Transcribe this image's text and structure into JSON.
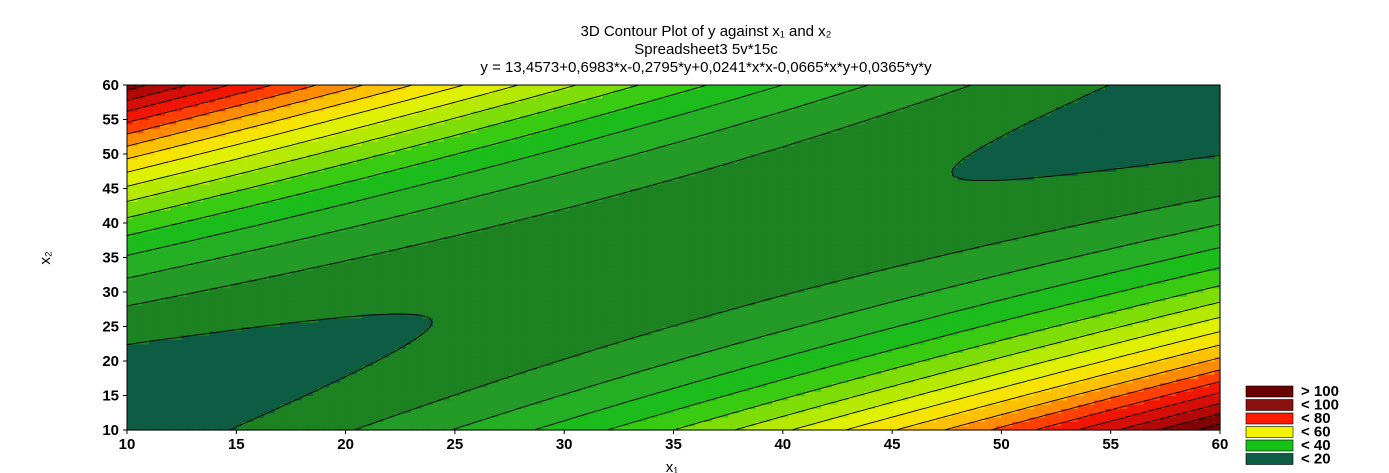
{
  "chart_data": {
    "type": "heatmap",
    "subtype": "filled-contour",
    "title_lines": [
      "3D Contour Plot of y against x₁ and x₂",
      "Spreadsheet3 5v*15c",
      "y = 13,4573+0,6983*x-0,2795*y+0,0241*x*x-0,0665*x*y+0,0365*y*y"
    ],
    "xlabel": "x₁",
    "ylabel": "x₂",
    "xlim": [
      10,
      60
    ],
    "ylim": [
      10,
      60
    ],
    "xticks": [
      10,
      15,
      20,
      25,
      30,
      35,
      40,
      45,
      50,
      55,
      60
    ],
    "yticks": [
      10,
      15,
      20,
      25,
      30,
      35,
      40,
      45,
      50,
      55,
      60
    ],
    "surface": {
      "intercept": 13.4573,
      "x": 0.6983,
      "y": -0.2795,
      "xx": 0.0241,
      "xy": -0.0665,
      "yy": 0.0365
    },
    "contour_step": 5,
    "legend": [
      {
        "label": "> 100",
        "color": "#6b0000"
      },
      {
        "label": "< 100",
        "color": "#8b1010"
      },
      {
        "label": "< 80",
        "color": "#ff1a00"
      },
      {
        "label": "< 60",
        "color": "#f4f400"
      },
      {
        "label": "< 40",
        "color": "#16c216"
      },
      {
        "label": "< 20",
        "color": "#0d5c44"
      }
    ],
    "color_stops": [
      {
        "value": 20,
        "color": "#0d5c44"
      },
      {
        "value": 21,
        "color": "#1b7a1f"
      },
      {
        "value": 30,
        "color": "#28a828"
      },
      {
        "value": 40,
        "color": "#16c216"
      },
      {
        "value": 50,
        "color": "#a0e600"
      },
      {
        "value": 60,
        "color": "#f4f400"
      },
      {
        "value": 70,
        "color": "#ffb000"
      },
      {
        "value": 80,
        "color": "#ff1a00"
      },
      {
        "value": 90,
        "color": "#c80a0a"
      },
      {
        "value": 100,
        "color": "#6b0000"
      }
    ],
    "legend_placement": "bottom-right",
    "grid": false
  }
}
